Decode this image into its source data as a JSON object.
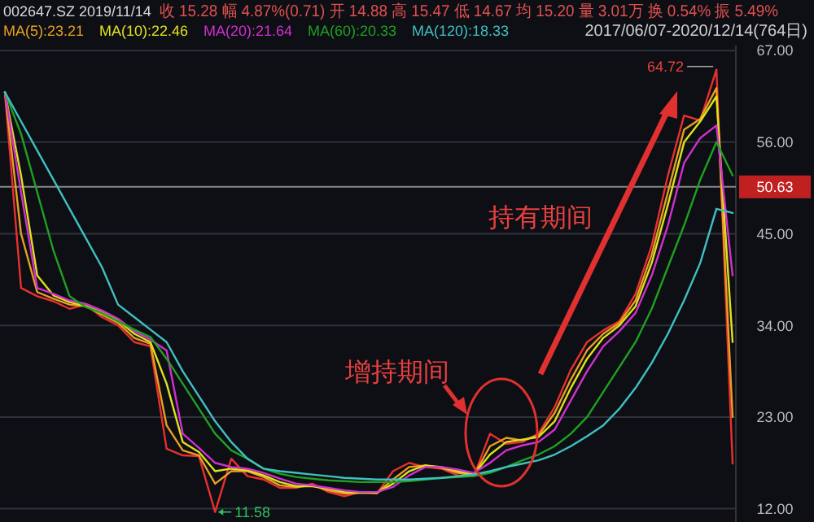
{
  "chart_data": {
    "type": "line",
    "title": "002647.SZ 2019/11/14",
    "subtitle": "收 15.28 幅 4.87%(0.71) 开 14.88 高 15.47 低 14.67 均 15.20 量 3.01万 换 0.54% 振 5.49%",
    "categories": [
      null,
      null,
      null,
      null,
      null,
      null,
      null,
      null,
      null,
      null,
      null,
      null,
      null,
      null,
      null,
      null,
      null,
      null,
      null,
      null,
      null,
      null,
      null,
      null,
      null,
      null,
      null,
      null,
      null,
      null,
      null,
      null,
      null,
      null,
      null,
      null,
      null,
      null,
      null,
      null,
      null,
      null,
      null,
      null,
      null,
      null
    ],
    "series": [
      {
        "color": "#e83030",
        "values": [
          62,
          38.5,
          37.5,
          36.9,
          36,
          36.5,
          35,
          34,
          32,
          31.5,
          19.2,
          18.4,
          18.3,
          11.6,
          18,
          15.9,
          15.5,
          14.5,
          14.5,
          15,
          14,
          13.5,
          14,
          13.8,
          16.5,
          17.5,
          17,
          16.8,
          16,
          15.9,
          21,
          19.8,
          20,
          21,
          24.2,
          28.7,
          32,
          33.4,
          34.5,
          37.8,
          43.6,
          52,
          59.2,
          58.6,
          64.7,
          17.4
        ]
      },
      {
        "name": "MA(5):23.21",
        "color": "#e8a020",
        "values": [
          62,
          45,
          38,
          37.2,
          36.5,
          36.3,
          35.3,
          34.3,
          32.5,
          31.8,
          22,
          19,
          18.4,
          15,
          16.5,
          16.5,
          15.8,
          14.8,
          14.6,
          14.8,
          14.2,
          13.8,
          13.9,
          13.9,
          15.5,
          17,
          17.2,
          16.9,
          16.3,
          16,
          19.5,
          20.5,
          20.2,
          20.8,
          23.5,
          27.5,
          31,
          33,
          34.3,
          37,
          42.5,
          50,
          57.5,
          58.8,
          62.5,
          23
        ]
      },
      {
        "name": "MA(10):22.46",
        "color": "#e0e020",
        "values": [
          62,
          52,
          40,
          37.6,
          36.8,
          36.3,
          35.6,
          34.6,
          33,
          32,
          27,
          20,
          18.8,
          16.5,
          16.8,
          16.6,
          16,
          15.2,
          14.7,
          14.7,
          14.4,
          14,
          13.9,
          13.9,
          15,
          16.5,
          17.2,
          17,
          16.5,
          16.1,
          18.5,
          20,
          20.3,
          20.6,
          22.5,
          26.5,
          30,
          32.5,
          34,
          36.3,
          41.5,
          48.5,
          56,
          58.5,
          61.5,
          32
        ]
      },
      {
        "name": "MA(20):21.64",
        "color": "#d030d0",
        "values": [
          62,
          50,
          38.5,
          37.8,
          37,
          36.6,
          35.8,
          34.8,
          33.3,
          32.3,
          31,
          21,
          19.3,
          17.5,
          17,
          16.8,
          16.3,
          15.6,
          15,
          14.8,
          14.5,
          14.2,
          14,
          14,
          14.6,
          16,
          17,
          17,
          16.7,
          16.3,
          17.5,
          19,
          19.6,
          20,
          21.5,
          25,
          28.5,
          31.5,
          33.3,
          35.5,
          40,
          46,
          53.5,
          56.5,
          58,
          40
        ]
      },
      {
        "name": "MA(60):20.33",
        "color": "#20a020",
        "values": [
          62,
          57,
          50,
          43,
          37.5,
          36.2,
          35.5,
          34.5,
          33.5,
          32.6,
          30,
          27,
          24,
          21,
          19,
          18,
          16.8,
          16.2,
          15.8,
          15.6,
          15.4,
          15.3,
          15.2,
          15.2,
          15.2,
          15.3,
          15.5,
          15.7,
          15.8,
          15.9,
          16.3,
          17,
          17.8,
          18.5,
          19.5,
          21,
          23,
          26,
          29,
          32,
          36,
          41,
          46,
          51.5,
          56,
          52
        ]
      },
      {
        "name": "MA(120):18.33",
        "color": "#40c0c0",
        "values": [
          62,
          58.5,
          55,
          51.5,
          48,
          44.5,
          41,
          36.5,
          35,
          33.5,
          32,
          28.5,
          25.5,
          22.5,
          20,
          18,
          16.8,
          16.5,
          16.3,
          16.1,
          15.9,
          15.7,
          15.6,
          15.5,
          15.5,
          15.5,
          15.6,
          15.7,
          15.9,
          16.1,
          16.5,
          17,
          17.4,
          17.8,
          18.5,
          19.5,
          20.7,
          22,
          24,
          26.5,
          29.5,
          33,
          37,
          41.5,
          48,
          47.5
        ]
      }
    ],
    "ylim": [
      10.4,
      67.6
    ],
    "yticks": [
      {
        "value": 12,
        "label": "12.00"
      },
      {
        "value": 23,
        "label": "23.00"
      },
      {
        "value": 34,
        "label": "34.00"
      },
      {
        "value": 45,
        "label": "45.00"
      },
      {
        "value": 56,
        "label": "56.00"
      },
      {
        "value": 67,
        "label": "67.00"
      }
    ],
    "ref_lines": [
      {
        "axis": "y",
        "value": 50.63,
        "label": "50.63",
        "color": "#888888"
      }
    ],
    "annotations": [
      "64.72",
      "11.58",
      "增持期间",
      "持有期间",
      "2017/06/07-2020/12/14(764日)"
    ],
    "grid": "y",
    "legend": "top left",
    "marker": "none",
    "line_style": "solid"
  }
}
